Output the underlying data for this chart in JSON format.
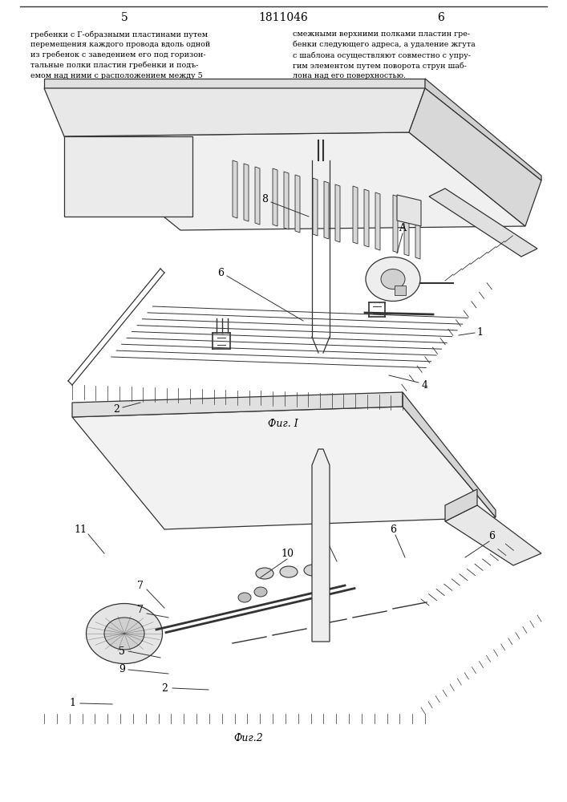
{
  "page_number_left": "5",
  "page_number_center": "1811046",
  "page_number_right": "6",
  "text_left": "гребенки с Г-образными пластинами путем\nперемещения каждого провода вдоль одной\nиз гребенок с заведением его под горизон-\nтальные полки пластин гребенки и подъ-\nемом над ними с расположением между 5",
  "text_right": "смежными верхними полками пластин гре-\nбенки следующего адреса, а удаление жгута\nс шаблона осуществляют совместно с упру-\nгим элементом путем поворота струн шаб-\nлона над его поверхностью.",
  "fig1_caption": "Фиг. I",
  "fig2_caption": "Фиг.2",
  "bg_color": "#ffffff",
  "line_color": "#333333",
  "text_color": "#000000"
}
